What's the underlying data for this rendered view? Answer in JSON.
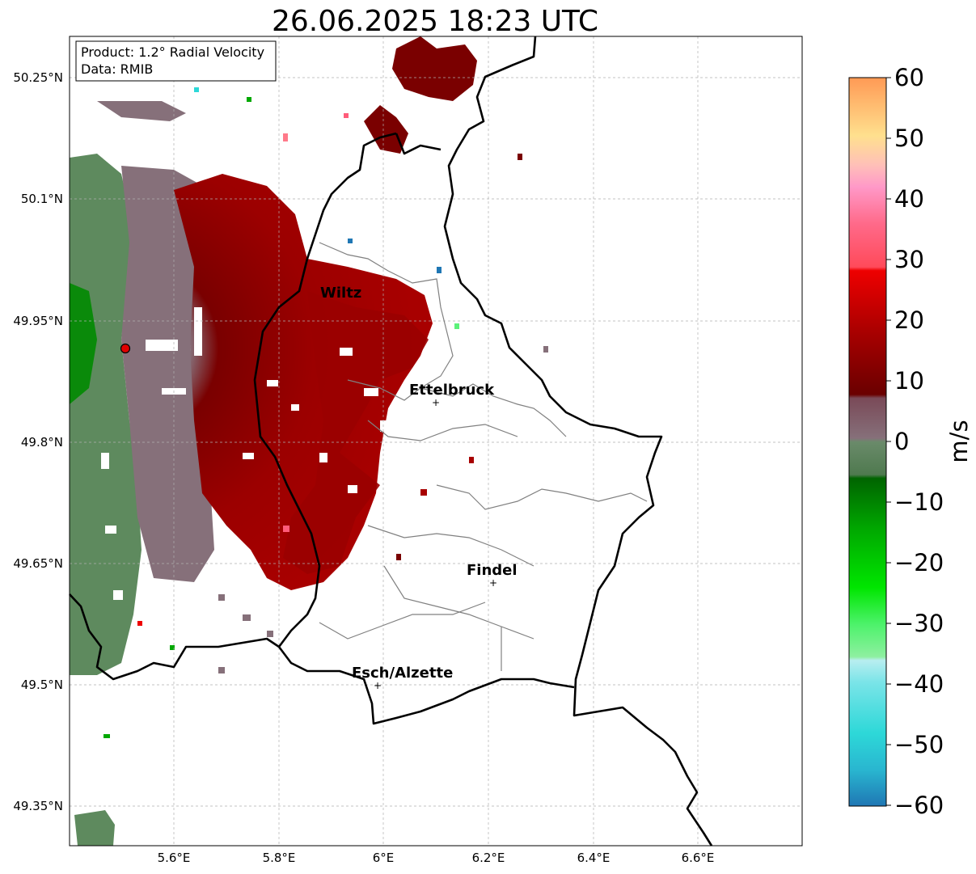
{
  "title": "26.06.2025 18:23 UTC",
  "info_box": {
    "product": "Product: 1.2° Radial Velocity",
    "data": "Data: RMIB"
  },
  "map": {
    "lon_range": [
      5.4,
      6.8
    ],
    "lat_range": [
      49.3,
      50.3
    ],
    "lon_ticks": [
      "5.6°E",
      "5.8°E",
      "6°E",
      "6.2°E",
      "6.4°E",
      "6.6°E"
    ],
    "lat_ticks": [
      "50.25°N",
      "50.1°N",
      "49.95°N",
      "49.8°N",
      "49.65°N",
      "49.5°N",
      "49.35°N"
    ],
    "grid": true,
    "radar_site": {
      "lon": 5.505,
      "lat": 49.914
    },
    "cities": [
      {
        "name": "Wiltz",
        "lon": 5.935,
        "lat": 49.97,
        "marker": false
      },
      {
        "name": "Ettelbruck",
        "lon": 6.104,
        "lat": 49.848,
        "marker": true
      },
      {
        "name": "Findel",
        "lon": 6.208,
        "lat": 49.626,
        "marker": true
      },
      {
        "name": "Esch/Alzette",
        "lon": 5.98,
        "lat": 49.497,
        "marker": true
      }
    ]
  },
  "colorbar": {
    "label": "m/s",
    "ticks": [
      "60",
      "50",
      "40",
      "30",
      "20",
      "10",
      "0",
      "−10",
      "−20",
      "−30",
      "−40",
      "−50",
      "−60"
    ],
    "range": [
      -60,
      60
    ],
    "colors": {
      "neg_blue": "#1f77b4",
      "neg_cyan": "#2dd8d8",
      "neg_lightcyan": "#b8eef0",
      "neg_lightgreen": "#8ef0a0",
      "neg_green": "#00e600",
      "neg_darkgreen": "#006400",
      "near_zero_green": "#5e8a5e",
      "near_zero_mauve": "#86707a",
      "pos_darkred": "#7a0000",
      "pos_red": "#ee0000",
      "pos_pink": "#ff5c7a",
      "pos_lightpink": "#ff99c8",
      "pos_peach": "#ffe08e",
      "pos_orange": "#ff9a55"
    }
  }
}
